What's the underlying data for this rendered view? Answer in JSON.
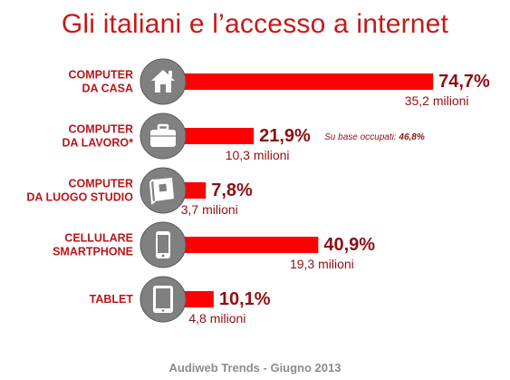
{
  "title": "Gli italiani e l’accesso a internet",
  "footer": "Audiweb Trends - Giugno 2013",
  "colors": {
    "accent": "#ff0000",
    "title": "#c41a1a",
    "label": "#b8161b",
    "value": "#8e0f14",
    "icon": "#808080"
  },
  "chart_data": {
    "type": "bar",
    "orientation": "horizontal",
    "unit": "%",
    "categories": [
      [
        "COMPUTER",
        "DA CASA"
      ],
      [
        "COMPUTER",
        "DA LAVORO*"
      ],
      [
        "COMPUTER",
        "DA LUOGO STUDIO"
      ],
      [
        "CELLULARE",
        "SMARTPHONE"
      ],
      [
        "TABLET"
      ]
    ],
    "values": [
      74.7,
      21.9,
      7.8,
      40.9,
      10.1
    ],
    "value_labels": [
      "74,7%",
      "21,9%",
      "7,8%",
      "40,9%",
      "10,1%"
    ],
    "secondary_labels": [
      "35,2 milioni",
      "10,3 milioni",
      "3,7 milioni",
      "19,3 milioni",
      "4,8 milioni"
    ],
    "icons": [
      "house-icon",
      "briefcase-icon",
      "book-icon",
      "smartphone-icon",
      "tablet-icon"
    ],
    "annotation": {
      "text": "Su base occupati: ",
      "value": "46,8%",
      "category_index": 1
    }
  }
}
